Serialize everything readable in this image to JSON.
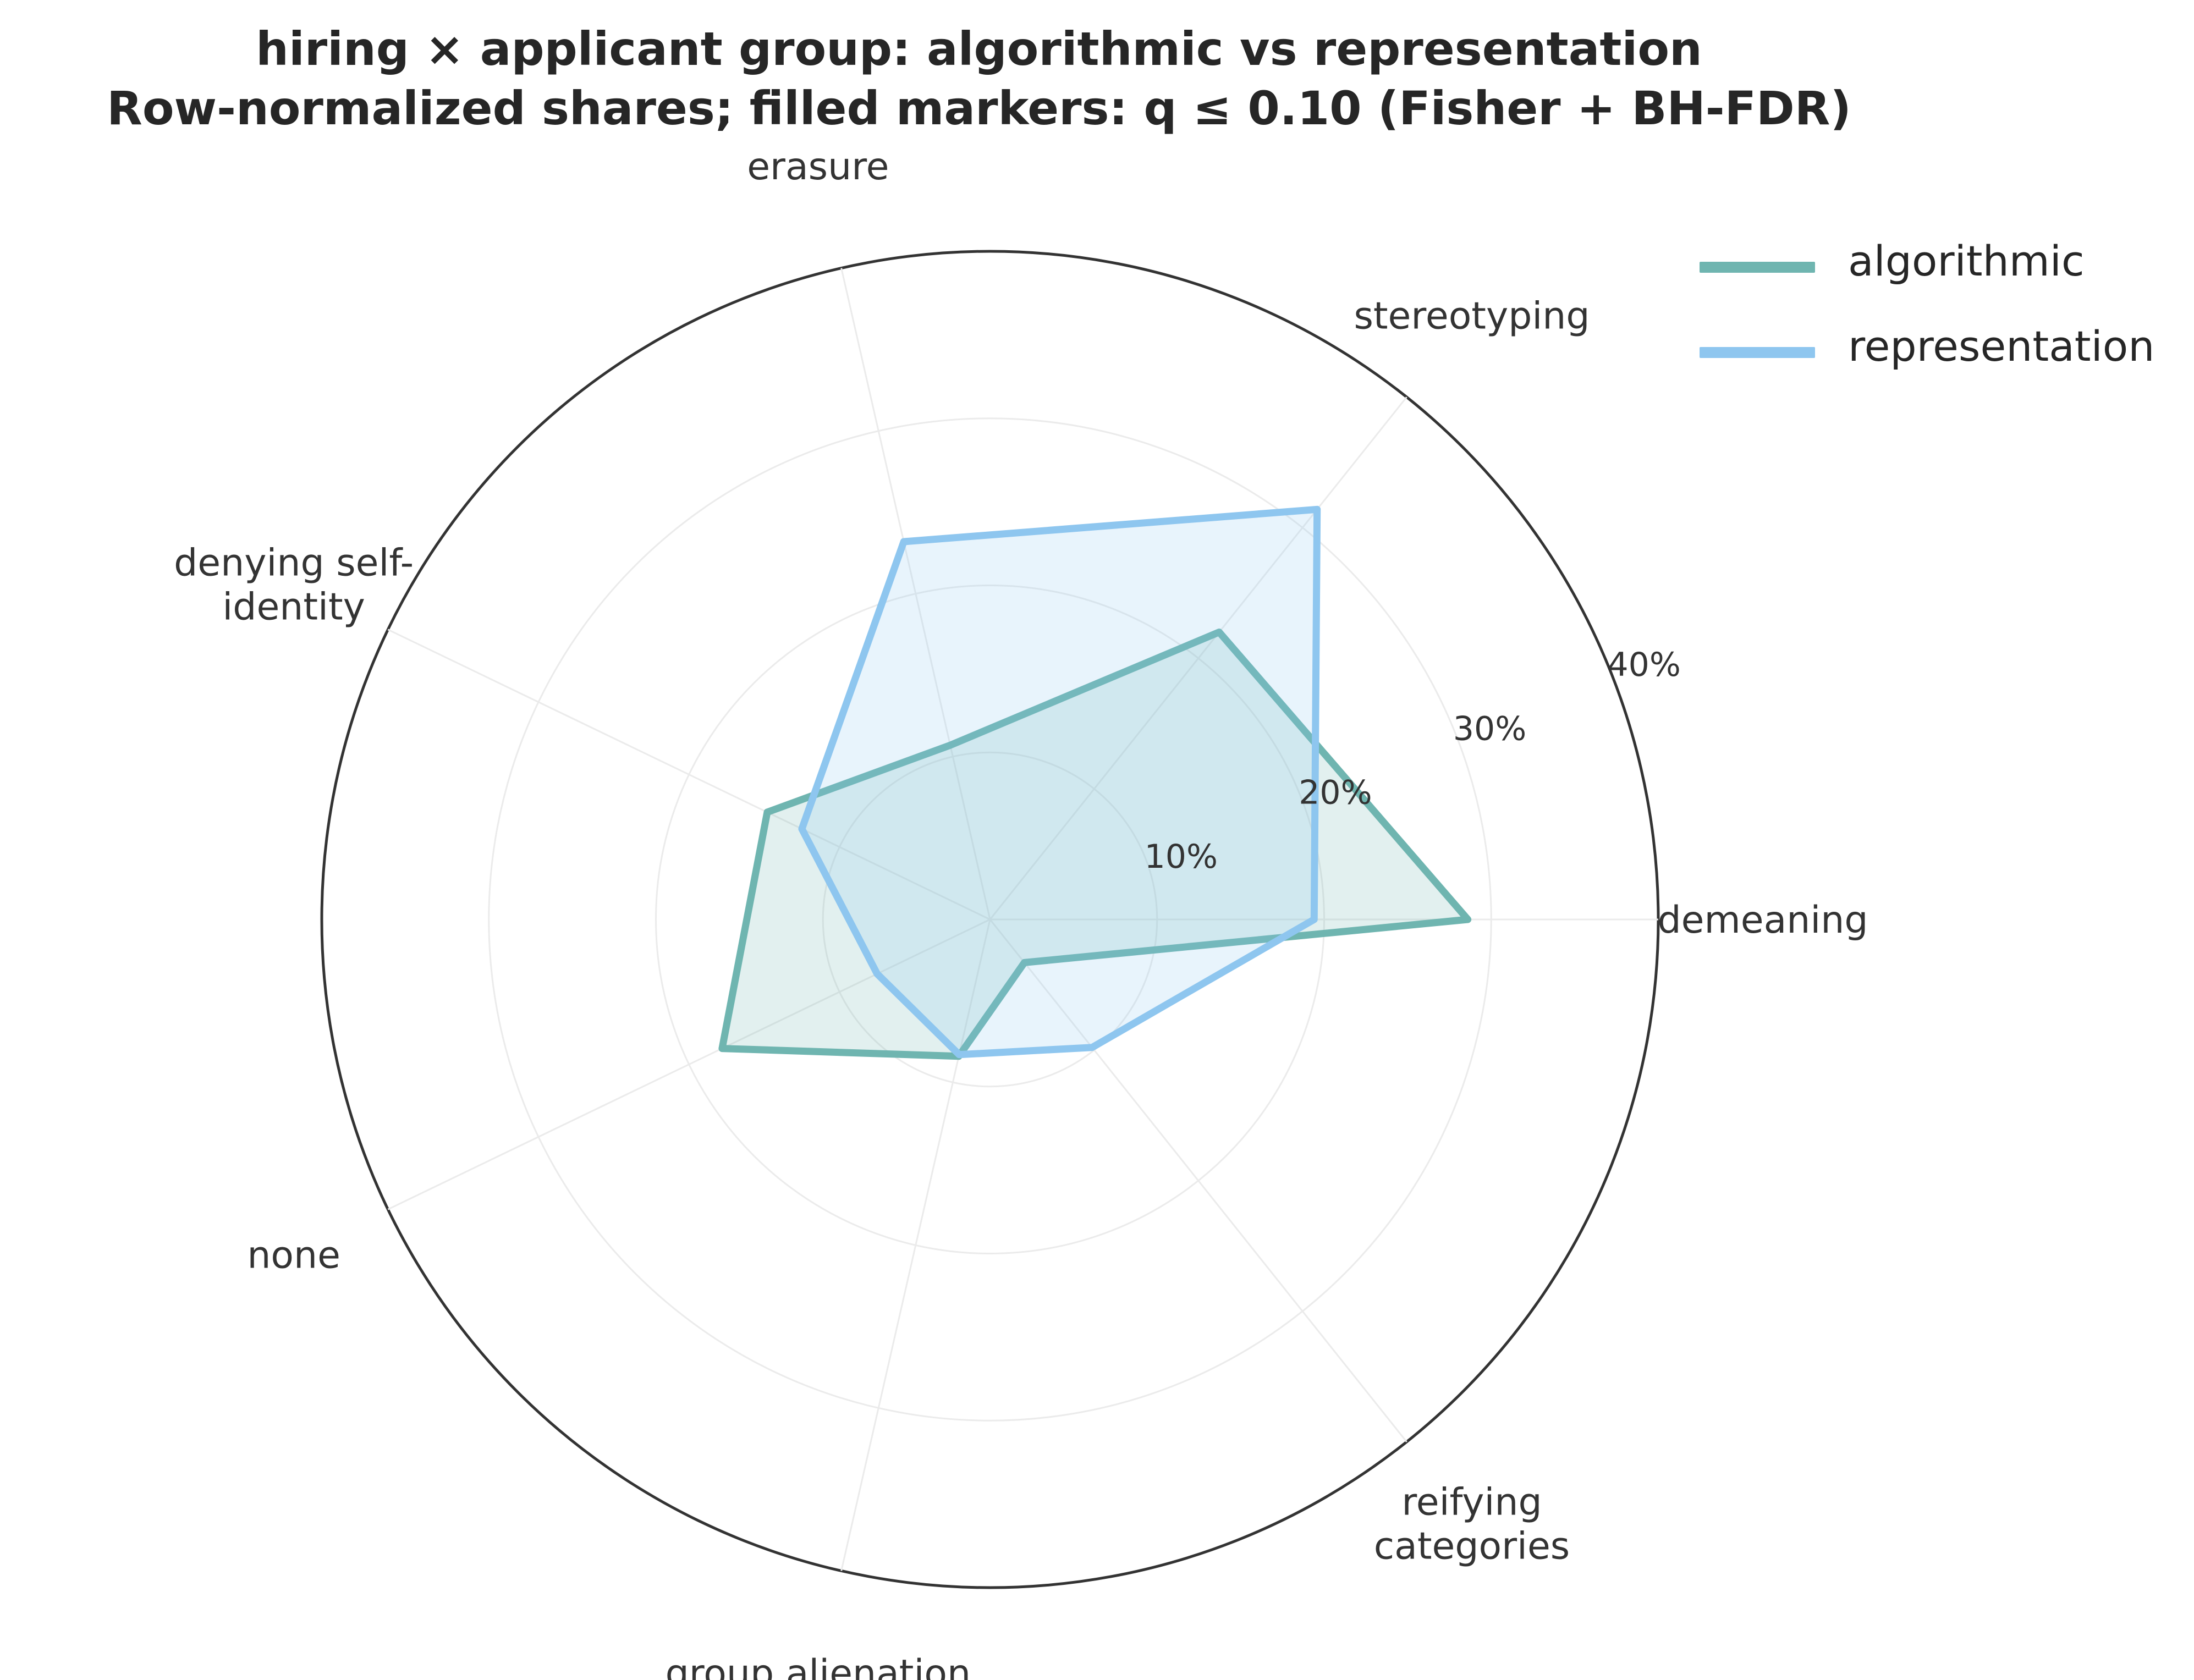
{
  "chart_data": {
    "type": "radar",
    "title": "hiring × applicant group: algorithmic vs representation",
    "subtitle": "Row-normalized shares; filled markers: q ≤ 0.10 (Fisher + BH-FDR)",
    "categories": [
      "demeaning",
      "stereotyping",
      "erasure",
      "denying self-identity",
      "none",
      "group alienation",
      "reifying categories"
    ],
    "category_label_lines": [
      [
        "demeaning"
      ],
      [
        "stereotyping"
      ],
      [
        "erasure"
      ],
      [
        "denying self-",
        "identity"
      ],
      [
        "none"
      ],
      [
        "group alienation"
      ],
      [
        "reifying",
        "categories"
      ]
    ],
    "r_ticks": [
      10,
      20,
      30,
      40
    ],
    "r_tick_labels": [
      "10%",
      "20%",
      "30%",
      "40%"
    ],
    "rlim": [
      0,
      40
    ],
    "unit": "%",
    "grid": true,
    "legend_position": "top-right",
    "series": [
      {
        "name": "algorithmic",
        "values": [
          28.6,
          22.0,
          10.7,
          14.8,
          17.8,
          8.4,
          3.3
        ],
        "color": "#6fb5b0"
      },
      {
        "name": "representation",
        "values": [
          19.4,
          31.4,
          23.2,
          12.5,
          7.5,
          8.3,
          9.8
        ],
        "color": "#8ec6ef"
      }
    ]
  },
  "legend": {
    "items": [
      {
        "label": "algorithmic",
        "color": "#6fb5b0"
      },
      {
        "label": "representation",
        "color": "#8ec6ef"
      }
    ]
  }
}
